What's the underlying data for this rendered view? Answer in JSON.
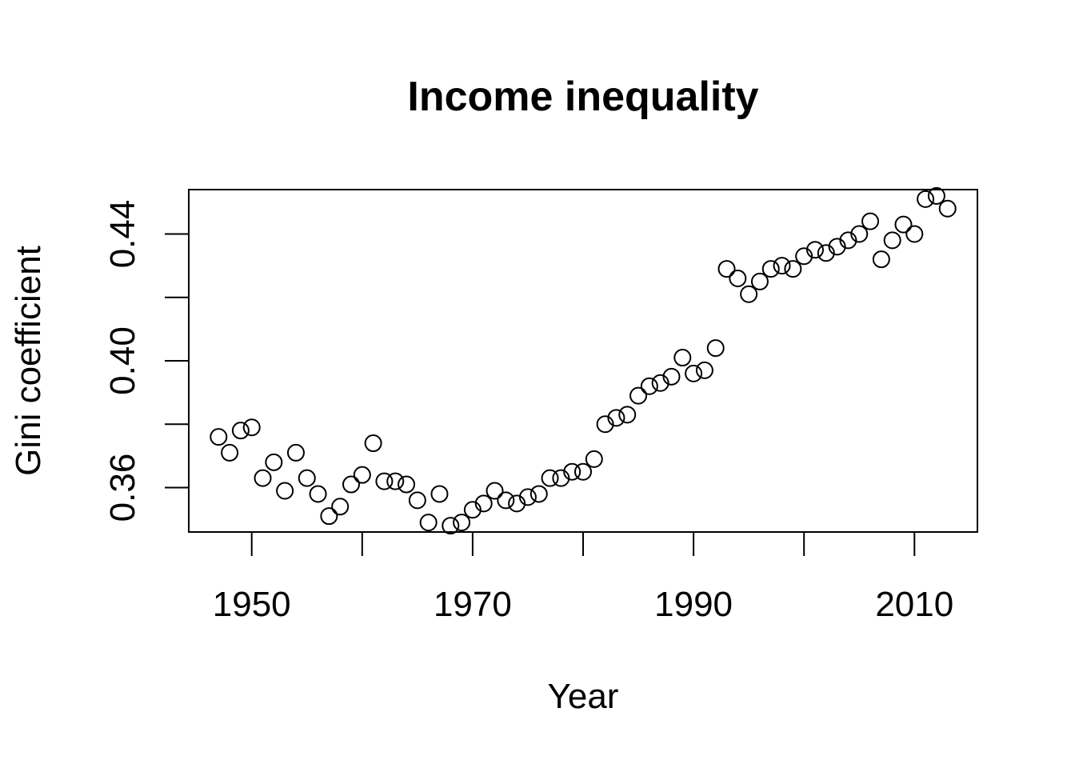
{
  "chart_data": {
    "type": "scatter",
    "title": "Income inequality",
    "xlabel": "Year",
    "ylabel": "Gini coefficient",
    "xlim": [
      1944.3,
      2015.7
    ],
    "ylim": [
      0.346,
      0.454
    ],
    "x_ticks": [
      1950,
      1960,
      1970,
      1980,
      1990,
      2000,
      2010
    ],
    "x_tick_labels": [
      "1950",
      "1970",
      "1990",
      "2010"
    ],
    "y_ticks": [
      0.36,
      0.38,
      0.4,
      0.42,
      0.44
    ],
    "y_tick_labels": [
      "0.36",
      "0.40",
      "0.44"
    ],
    "grid": false,
    "marker": "open-circle",
    "series": [
      {
        "x": [
          1947,
          1948,
          1949,
          1950,
          1951,
          1952,
          1953,
          1954,
          1955,
          1956,
          1957,
          1958,
          1959,
          1960,
          1961,
          1962,
          1963,
          1964,
          1965,
          1966,
          1967,
          1968,
          1969,
          1970,
          1971,
          1972,
          1973,
          1974,
          1975,
          1976,
          1977,
          1978,
          1979,
          1980,
          1981,
          1982,
          1983,
          1984,
          1985,
          1986,
          1987,
          1988,
          1989,
          1990,
          1991,
          1992,
          1993,
          1994,
          1995,
          1996,
          1997,
          1998,
          1999,
          2000,
          2001,
          2002,
          2003,
          2004,
          2005,
          2006,
          2007,
          2008,
          2009,
          2010,
          2011,
          2012,
          2013
        ],
        "y": [
          0.376,
          0.371,
          0.378,
          0.379,
          0.363,
          0.368,
          0.359,
          0.371,
          0.363,
          0.358,
          0.351,
          0.354,
          0.361,
          0.364,
          0.374,
          0.362,
          0.362,
          0.361,
          0.356,
          0.349,
          0.358,
          0.348,
          0.349,
          0.353,
          0.355,
          0.359,
          0.356,
          0.355,
          0.357,
          0.358,
          0.363,
          0.363,
          0.365,
          0.365,
          0.369,
          0.38,
          0.382,
          0.383,
          0.389,
          0.392,
          0.393,
          0.395,
          0.401,
          0.396,
          0.397,
          0.404,
          0.429,
          0.426,
          0.421,
          0.425,
          0.429,
          0.43,
          0.429,
          0.433,
          0.435,
          0.434,
          0.436,
          0.438,
          0.44,
          0.444,
          0.432,
          0.438,
          0.443,
          0.44,
          0.451,
          0.452,
          0.448
        ]
      }
    ]
  }
}
